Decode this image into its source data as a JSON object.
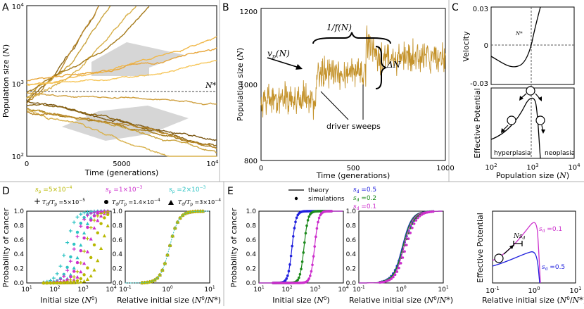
{
  "chart_data": [
    {
      "panel": "A",
      "type": "line",
      "xlabel": "Time (generations)",
      "ylabel": "Population size (N)",
      "yscale": "log",
      "xlim": [
        0,
        10000
      ],
      "ylim": [
        100,
        10000
      ],
      "xticks": [
        "0",
        "5000",
        "10^4"
      ],
      "yticks": [
        "10^2",
        "10^3",
        "10^4"
      ],
      "annotation": "N*",
      "threshold": 800
    },
    {
      "panel": "B",
      "type": "line",
      "xlabel": "Time (generations)",
      "ylabel": "Population size (N)",
      "xlim": [
        0,
        1000
      ],
      "ylim": [
        800,
        1200
      ],
      "xticks": [
        "0",
        "500",
        "1000"
      ],
      "yticks": [
        "800",
        "1000",
        "1200"
      ],
      "labels": {
        "velocity": "v_p(N)",
        "period": "1/f(N)",
        "jump": "ΔN",
        "sweeps": "driver sweeps"
      },
      "segments": [
        {
          "x": [
            0,
            300
          ],
          "mean": 960
        },
        {
          "x": [
            300,
            570
          ],
          "mean": 1030
        },
        {
          "x": [
            570,
            1000
          ],
          "mean": 1070
        }
      ]
    },
    {
      "panel": "C",
      "type": "line",
      "xlabel": "Population size (N)",
      "xscale": "log",
      "xlim": [
        100,
        10000
      ],
      "xticks": [
        "10^2",
        "10^3",
        "10^4"
      ],
      "top": {
        "ylabel": "Velocity",
        "yticks": [
          "-0.03",
          "0",
          "0.03"
        ],
        "ylim": [
          -0.03,
          0.03
        ],
        "marker": "N*"
      },
      "bottom": {
        "ylabel": "Effective Potential",
        "regions": [
          "hyperplasia",
          "neoplasia"
        ]
      }
    },
    {
      "panel": "D",
      "type": "scatter",
      "ylabel": "Probability of cancer",
      "yticks": [
        "0.0",
        "0.2",
        "0.4",
        "0.6",
        "0.8",
        "1.0"
      ],
      "left": {
        "xlabel": "Initial size (N^0)",
        "xscale": "log",
        "xticks": [
          "10^1",
          "10^2",
          "10^3",
          "10^4"
        ]
      },
      "right": {
        "xlabel": "Relative initial size (N^0/N*)",
        "xscale": "log",
        "xticks": [
          "10^-1",
          "10^0",
          "10^1"
        ]
      },
      "color_legend": [
        {
          "label": "s_p = 5×10^-4",
          "color": "#b8b800"
        },
        {
          "label": "s_p = 1×10^-3",
          "color": "#cc2ecc"
        },
        {
          "label": "s_p = 2×10^-3",
          "color": "#2ec4c4"
        }
      ],
      "marker_legend": [
        {
          "label": "T_d/T_p = 5×10^-5",
          "marker": "plus"
        },
        {
          "label": "T_d/T_p = 1.4×10^-4",
          "marker": "circle"
        },
        {
          "label": "T_d/T_p = 3×10^-4",
          "marker": "triangle"
        }
      ],
      "series": [
        {
          "color": "#2ec4c4",
          "marker": "plus",
          "n50": 250
        },
        {
          "color": "#2ec4c4",
          "marker": "circle",
          "n50": 450
        },
        {
          "color": "#2ec4c4",
          "marker": "triangle",
          "n50": 800
        },
        {
          "color": "#cc2ecc",
          "marker": "plus",
          "n50": 500
        },
        {
          "color": "#cc2ecc",
          "marker": "circle",
          "n50": 900
        },
        {
          "color": "#cc2ecc",
          "marker": "triangle",
          "n50": 1600
        },
        {
          "color": "#b8b800",
          "marker": "plus",
          "n50": 1200
        },
        {
          "color": "#b8b800",
          "marker": "circle",
          "n50": 2400
        },
        {
          "color": "#b8b800",
          "marker": "triangle",
          "n50": 4500
        }
      ]
    },
    {
      "panel": "E",
      "type": "scatter",
      "ylabel": "Probability of cancer",
      "yticks": [
        "0.0",
        "0.2",
        "0.4",
        "0.6",
        "0.8",
        "1.0"
      ],
      "left": {
        "xlabel": "Initial size (N^0)",
        "xscale": "log",
        "xticks": [
          "10^1",
          "10^2",
          "10^3",
          "10^4"
        ]
      },
      "right": {
        "xlabel": "Relative initial size (N^0/N*)",
        "xscale": "log",
        "xticks": [
          "10^-1",
          "10^0",
          "10^1"
        ]
      },
      "style_legend": [
        {
          "label": "theory",
          "style": "line"
        },
        {
          "label": "simulations",
          "style": "dots"
        }
      ],
      "series": [
        {
          "label": "s_d = 0.5",
          "color": "#1f1fdd",
          "n50": 150,
          "nstar": 140
        },
        {
          "label": "s_d = 0.2",
          "color": "#1d8a1d",
          "n50": 400,
          "nstar": 370
        },
        {
          "label": "s_d = 0.1",
          "color": "#cc2ecc",
          "n50": 950,
          "nstar": 880
        }
      ],
      "potential": {
        "ylabel": "Effective Potential",
        "xlabel": "Relative initial size (N^0/N*)",
        "xticks": [
          "10^-1",
          "10^0",
          "10^1"
        ],
        "curves": [
          {
            "label": "s_d = 0.1",
            "color": "#cc2ecc"
          },
          {
            "label": "s_d = 0.5",
            "color": "#1f1fdd"
          }
        ],
        "barrier_label": "N s_d"
      }
    }
  ]
}
